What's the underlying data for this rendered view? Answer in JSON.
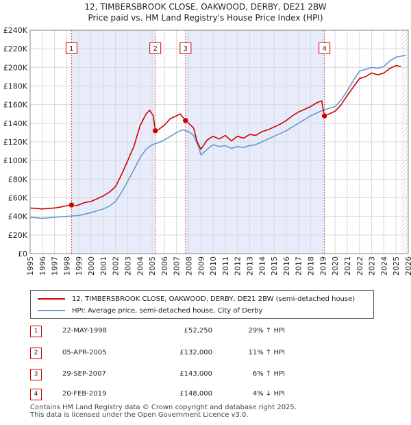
{
  "chart_data": {
    "type": "line",
    "title": "12, TIMBERSBROOK CLOSE, OAKWOOD, DERBY, DE21 2BW",
    "subtitle": "Price paid vs. HM Land Registry's House Price Index (HPI)",
    "xlim": [
      1995,
      2026
    ],
    "ylim": [
      0,
      240000
    ],
    "x_ticks": [
      1995,
      1996,
      1997,
      1998,
      1999,
      2000,
      2001,
      2002,
      2003,
      2004,
      2005,
      2006,
      2007,
      2008,
      2009,
      2010,
      2011,
      2012,
      2013,
      2014,
      2015,
      2016,
      2017,
      2018,
      2019,
      2020,
      2021,
      2022,
      2023,
      2024,
      2025,
      2026
    ],
    "y_ticks": [
      {
        "value": 0,
        "label": "£0"
      },
      {
        "value": 20000,
        "label": "£20K"
      },
      {
        "value": 40000,
        "label": "£40K"
      },
      {
        "value": 60000,
        "label": "£60K"
      },
      {
        "value": 80000,
        "label": "£80K"
      },
      {
        "value": 100000,
        "label": "£100K"
      },
      {
        "value": 120000,
        "label": "£120K"
      },
      {
        "value": 140000,
        "label": "£140K"
      },
      {
        "value": 160000,
        "label": "£160K"
      },
      {
        "value": 180000,
        "label": "£180K"
      },
      {
        "value": 200000,
        "label": "£200K"
      },
      {
        "value": 220000,
        "label": "£220K"
      },
      {
        "value": 240000,
        "label": "£240K"
      }
    ],
    "grid": true,
    "shaded_periods": [
      [
        1998.39,
        2005.26
      ],
      [
        2007.74,
        2019.13
      ]
    ],
    "projection_start": 2025.4,
    "series": [
      {
        "name": "12, TIMBERSBROOK CLOSE, OAKWOOD, DERBY, DE21 2BW (semi-detached house)",
        "color": "#cc0000",
        "points": [
          [
            1995,
            49000
          ],
          [
            1995.5,
            48500
          ],
          [
            1996,
            48000
          ],
          [
            1996.5,
            48500
          ],
          [
            1997,
            49000
          ],
          [
            1997.5,
            50000
          ],
          [
            1998,
            51500
          ],
          [
            1998.39,
            52250
          ],
          [
            1998.8,
            51500
          ],
          [
            1999,
            52500
          ],
          [
            1999.5,
            55000
          ],
          [
            2000,
            56000
          ],
          [
            2000.5,
            59000
          ],
          [
            2001,
            62000
          ],
          [
            2001.5,
            66000
          ],
          [
            2002,
            72000
          ],
          [
            2002.5,
            85000
          ],
          [
            2003,
            100000
          ],
          [
            2003.5,
            115000
          ],
          [
            2004,
            137000
          ],
          [
            2004.5,
            150000
          ],
          [
            2004.8,
            154000
          ],
          [
            2005.1,
            148000
          ],
          [
            2005.26,
            132000
          ],
          [
            2005.5,
            133000
          ],
          [
            2006,
            138000
          ],
          [
            2006.5,
            145000
          ],
          [
            2007,
            148000
          ],
          [
            2007.3,
            150000
          ],
          [
            2007.74,
            143000
          ],
          [
            2008,
            140000
          ],
          [
            2008.4,
            135000
          ],
          [
            2008.7,
            120000
          ],
          [
            2009,
            112000
          ],
          [
            2009.5,
            122000
          ],
          [
            2010,
            126000
          ],
          [
            2010.5,
            123000
          ],
          [
            2011,
            127000
          ],
          [
            2011.5,
            121000
          ],
          [
            2012,
            126000
          ],
          [
            2012.5,
            124000
          ],
          [
            2013,
            128000
          ],
          [
            2013.5,
            127000
          ],
          [
            2014,
            131000
          ],
          [
            2014.5,
            133000
          ],
          [
            2015,
            136000
          ],
          [
            2015.5,
            139000
          ],
          [
            2016,
            143000
          ],
          [
            2016.5,
            148000
          ],
          [
            2017,
            152000
          ],
          [
            2017.5,
            155000
          ],
          [
            2018,
            158000
          ],
          [
            2018.5,
            162000
          ],
          [
            2018.9,
            164000
          ],
          [
            2019.13,
            148000
          ],
          [
            2019.5,
            150000
          ],
          [
            2020,
            153000
          ],
          [
            2020.5,
            160000
          ],
          [
            2021,
            170000
          ],
          [
            2021.5,
            179000
          ],
          [
            2022,
            188000
          ],
          [
            2022.5,
            190000
          ],
          [
            2023,
            194000
          ],
          [
            2023.5,
            192000
          ],
          [
            2024,
            194000
          ],
          [
            2024.5,
            199000
          ],
          [
            2025,
            202000
          ],
          [
            2025.4,
            201000
          ]
        ]
      },
      {
        "name": "HPI: Average price, semi-detached house, City of Derby",
        "color": "#6699cc",
        "points": [
          [
            1995,
            39000
          ],
          [
            1995.5,
            38500
          ],
          [
            1996,
            38000
          ],
          [
            1996.5,
            38500
          ],
          [
            1997,
            39000
          ],
          [
            1997.5,
            39500
          ],
          [
            1998,
            40000
          ],
          [
            1998.5,
            40500
          ],
          [
            1999,
            41000
          ],
          [
            1999.5,
            42500
          ],
          [
            2000,
            44000
          ],
          [
            2000.5,
            46000
          ],
          [
            2001,
            48000
          ],
          [
            2001.5,
            51000
          ],
          [
            2002,
            56000
          ],
          [
            2002.5,
            66000
          ],
          [
            2003,
            78000
          ],
          [
            2003.5,
            90000
          ],
          [
            2004,
            103000
          ],
          [
            2004.5,
            112000
          ],
          [
            2005,
            117000
          ],
          [
            2005.5,
            119000
          ],
          [
            2006,
            122000
          ],
          [
            2006.5,
            126000
          ],
          [
            2007,
            130000
          ],
          [
            2007.5,
            133000
          ],
          [
            2008,
            131000
          ],
          [
            2008.4,
            127000
          ],
          [
            2008.8,
            115000
          ],
          [
            2009,
            106000
          ],
          [
            2009.5,
            112000
          ],
          [
            2010,
            117000
          ],
          [
            2010.5,
            115000
          ],
          [
            2011,
            116000
          ],
          [
            2011.5,
            113000
          ],
          [
            2012,
            115000
          ],
          [
            2012.5,
            114000
          ],
          [
            2013,
            116000
          ],
          [
            2013.5,
            117000
          ],
          [
            2014,
            120000
          ],
          [
            2014.5,
            123000
          ],
          [
            2015,
            126000
          ],
          [
            2015.5,
            129000
          ],
          [
            2016,
            132000
          ],
          [
            2016.5,
            136000
          ],
          [
            2017,
            140000
          ],
          [
            2017.5,
            144000
          ],
          [
            2018,
            148000
          ],
          [
            2018.5,
            151000
          ],
          [
            2019,
            154000
          ],
          [
            2019.5,
            156000
          ],
          [
            2020,
            158000
          ],
          [
            2020.5,
            165000
          ],
          [
            2021,
            175000
          ],
          [
            2021.5,
            186000
          ],
          [
            2022,
            196000
          ],
          [
            2022.5,
            198000
          ],
          [
            2023,
            200000
          ],
          [
            2023.5,
            199000
          ],
          [
            2024,
            201000
          ],
          [
            2024.5,
            207000
          ],
          [
            2025,
            211000
          ],
          [
            2025.4,
            212000
          ],
          [
            2025.8,
            213000
          ]
        ]
      }
    ],
    "sales": [
      {
        "label": "1",
        "x": 1998.39,
        "y": 52250
      },
      {
        "label": "2",
        "x": 2005.26,
        "y": 132000
      },
      {
        "label": "3",
        "x": 2007.74,
        "y": 143000
      },
      {
        "label": "4",
        "x": 2019.13,
        "y": 148000
      }
    ],
    "marker_label_value": 220000
  },
  "legend": {
    "property": "12, TIMBERSBROOK CLOSE, OAKWOOD, DERBY, DE21 2BW (semi-detached house)",
    "hpi": "HPI: Average price, semi-detached house, City of Derby"
  },
  "transactions": [
    {
      "num": "1",
      "date": "22-MAY-1998",
      "price": "£52,250",
      "hpi": "29% ↑ HPI"
    },
    {
      "num": "2",
      "date": "05-APR-2005",
      "price": "£132,000",
      "hpi": "11% ↑ HPI"
    },
    {
      "num": "3",
      "date": "29-SEP-2007",
      "price": "£143,000",
      "hpi": "6% ↑ HPI"
    },
    {
      "num": "4",
      "date": "20-FEB-2019",
      "price": "£148,000",
      "hpi": "4% ↓ HPI"
    }
  ],
  "footer": {
    "line1": "Contains HM Land Registry data © Crown copyright and database right 2025.",
    "line2": "This data is licensed under the Open Government Licence v3.0."
  }
}
